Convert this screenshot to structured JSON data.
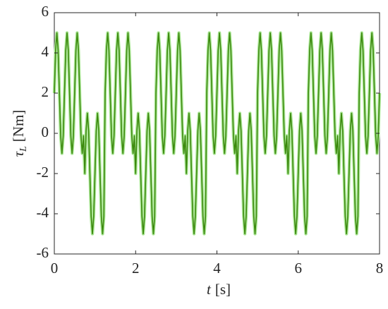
{
  "chart_data": {
    "type": "line",
    "xlabel": [
      "t",
      "[s]"
    ],
    "ylabel": [
      "τ",
      "L",
      "[Nm]"
    ],
    "xlim": [
      0,
      8
    ],
    "xticks": [
      0,
      2,
      4,
      6,
      8
    ],
    "ylim": [
      -6,
      6
    ],
    "yticks": [
      -6,
      -4,
      -2,
      0,
      2,
      4,
      6
    ],
    "grid": false,
    "x": [
      0,
      0.03125,
      0.0625,
      0.09375,
      0.125,
      0.15625,
      0.1875,
      0.21875,
      0.25,
      0.28125,
      0.3125,
      0.34375,
      0.375,
      0.40625,
      0.4375,
      0.46875,
      0.5,
      0.53125,
      0.5625,
      0.59375,
      0.625,
      0.65625,
      0.6875,
      0.71875,
      0.75,
      0.78125,
      0.8125,
      0.84375,
      0.875,
      0.90625,
      0.9375,
      0.96875,
      1,
      1.03125,
      1.0625,
      1.09375,
      1.125,
      1.15625,
      1.1875,
      1.21875,
      1.25,
      1.28125,
      1.3125,
      1.34375,
      1.375,
      1.40625,
      1.4375,
      1.46875,
      1.5,
      1.53125,
      1.5625,
      1.59375,
      1.625,
      1.65625,
      1.6875,
      1.71875,
      1.75,
      1.78125,
      1.8125,
      1.84375,
      1.875,
      1.90625,
      1.9375,
      1.96875,
      2,
      2.03125,
      2.0625,
      2.09375,
      2.125,
      2.15625,
      2.1875,
      2.21875,
      2.25,
      2.28125,
      2.3125,
      2.34375,
      2.375,
      2.40625,
      2.4375,
      2.46875,
      2.5,
      2.53125,
      2.5625,
      2.59375,
      2.625,
      2.65625,
      2.6875,
      2.71875,
      2.75,
      2.78125,
      2.8125,
      2.84375,
      2.875,
      2.90625,
      2.9375,
      2.96875,
      3,
      3.03125,
      3.0625,
      3.09375,
      3.125,
      3.15625,
      3.1875,
      3.21875,
      3.25,
      3.28125,
      3.3125,
      3.34375,
      3.375,
      3.40625,
      3.4375,
      3.46875,
      3.5,
      3.53125,
      3.5625,
      3.59375,
      3.625,
      3.65625,
      3.6875,
      3.71875,
      3.75,
      3.78125,
      3.8125,
      3.84375,
      3.875,
      3.90625,
      3.9375,
      3.96875,
      4,
      4.03125,
      4.0625,
      4.09375,
      4.125,
      4.15625,
      4.1875,
      4.21875,
      4.25,
      4.28125,
      4.3125,
      4.34375,
      4.375,
      4.40625,
      4.4375,
      4.46875,
      4.5,
      4.53125,
      4.5625,
      4.59375,
      4.625,
      4.65625,
      4.6875,
      4.71875,
      4.75,
      4.78125,
      4.8125,
      4.84375,
      4.875,
      4.90625,
      4.9375,
      4.96875,
      5,
      5.03125,
      5.0625,
      5.09375,
      5.125,
      5.15625,
      5.1875,
      5.21875,
      5.25,
      5.28125,
      5.3125,
      5.34375,
      5.375,
      5.40625,
      5.4375,
      5.46875,
      5.5,
      5.53125,
      5.5625,
      5.59375,
      5.625,
      5.65625,
      5.6875,
      5.71875,
      5.75,
      5.78125,
      5.8125,
      5.84375,
      5.875,
      5.90625,
      5.9375,
      5.96875,
      6,
      6.03125,
      6.0625,
      6.09375,
      6.125,
      6.15625,
      6.1875,
      6.21875,
      6.25,
      6.28125,
      6.3125,
      6.34375,
      6.375,
      6.40625,
      6.4375,
      6.46875,
      6.5,
      6.53125,
      6.5625,
      6.59375,
      6.625,
      6.65625,
      6.6875,
      6.71875,
      6.75,
      6.78125,
      6.8125,
      6.84375,
      6.875,
      6.90625,
      6.9375,
      6.96875,
      7,
      7.03125,
      7.0625,
      7.09375,
      7.125,
      7.15625,
      7.1875,
      7.21875,
      7.25,
      7.28125,
      7.3125,
      7.34375,
      7.375,
      7.40625,
      7.4375,
      7.46875,
      7.5,
      7.53125,
      7.5625,
      7.59375,
      7.625,
      7.65625,
      7.6875,
      7.71875,
      7.75,
      7.78125,
      7.8125,
      7.84375,
      7.875,
      7.90625,
      7.9375,
      7.96875,
      8
    ],
    "series": [
      {
        "color": "#3c8a0e",
        "halo": "#aee89a",
        "values": [
          2,
          4.12,
          5,
          4.12,
          2,
          -0.12,
          -1,
          -0.12,
          2,
          4.12,
          5,
          4.12,
          2,
          -0.12,
          -1,
          -0.12,
          2,
          4.12,
          5,
          4.12,
          2,
          -0.12,
          -1,
          -0.12,
          -2,
          0.12,
          1,
          0.12,
          -2,
          -4.12,
          -5,
          -4.12,
          -2,
          0.12,
          1,
          0.12,
          -2,
          -4.12,
          -5,
          -4.12,
          2,
          4.12,
          5,
          4.12,
          2,
          -0.12,
          -1,
          -0.12,
          2,
          4.12,
          5,
          4.12,
          2,
          -0.12,
          -1,
          -0.12,
          2,
          4.12,
          5,
          4.12,
          2,
          -0.12,
          -1,
          -0.12,
          -2,
          0.12,
          1,
          0.12,
          -2,
          -4.12,
          -5,
          -4.12,
          -2,
          0.12,
          1,
          0.12,
          -2,
          -4.12,
          -5,
          -4.12,
          2,
          4.12,
          5,
          4.12,
          2,
          -0.12,
          -1,
          -0.12,
          2,
          4.12,
          5,
          4.12,
          2,
          -0.12,
          -1,
          -0.12,
          2,
          4.12,
          5,
          4.12,
          2,
          -0.12,
          -1,
          -0.12,
          -2,
          0.12,
          1,
          0.12,
          -2,
          -4.12,
          -5,
          -4.12,
          -2,
          0.12,
          1,
          0.12,
          -2,
          -4.12,
          -5,
          -4.12,
          2,
          4.12,
          5,
          4.12,
          2,
          -0.12,
          -1,
          -0.12,
          2,
          4.12,
          5,
          4.12,
          2,
          -0.12,
          -1,
          -0.12,
          2,
          4.12,
          5,
          4.12,
          2,
          -0.12,
          -1,
          -0.12,
          -2,
          0.12,
          1,
          0.12,
          -2,
          -4.12,
          -5,
          -4.12,
          -2,
          0.12,
          1,
          0.12,
          -2,
          -4.12,
          -5,
          -4.12,
          2,
          4.12,
          5,
          4.12,
          2,
          -0.12,
          -1,
          -0.12,
          2,
          4.12,
          5,
          4.12,
          2,
          -0.12,
          -1,
          -0.12,
          2,
          4.12,
          5,
          4.12,
          2,
          -0.12,
          -1,
          -0.12,
          -2,
          0.12,
          1,
          0.12,
          -2,
          -4.12,
          -5,
          -4.12,
          -2,
          0.12,
          1,
          0.12,
          -2,
          -4.12,
          -5,
          -4.12,
          2,
          4.12,
          5,
          4.12,
          2,
          -0.12,
          -1,
          -0.12,
          2,
          4.12,
          5,
          4.12,
          2,
          -0.12,
          -1,
          -0.12,
          2,
          4.12,
          5,
          4.12,
          2,
          -0.12,
          -1,
          -0.12,
          -2,
          0.12,
          1,
          0.12,
          -2,
          -4.12,
          -5,
          -4.12,
          -2,
          0.12,
          1,
          0.12,
          -2,
          -4.12,
          -5,
          -4.12,
          2,
          4.12,
          5,
          4.12,
          2,
          -0.12,
          -1,
          -0.12,
          2,
          4.12,
          5,
          4.12,
          2,
          -0.12,
          -1,
          -0.12,
          2
        ]
      }
    ]
  }
}
